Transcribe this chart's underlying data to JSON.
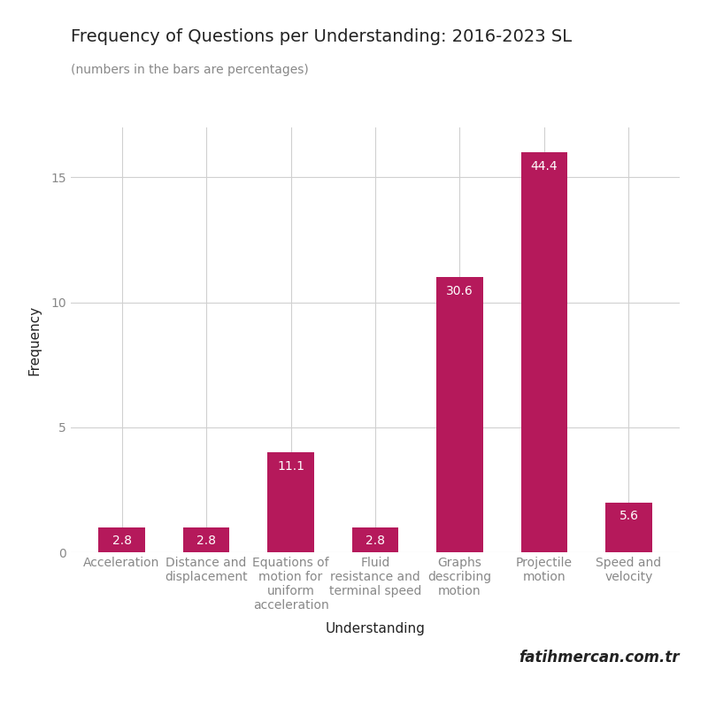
{
  "title": "Frequency of Questions per Understanding: 2016-2023 SL",
  "subtitle": "(numbers in the bars are percentages)",
  "xlabel": "Understanding",
  "ylabel": "Frequency",
  "watermark": "fatihmercan.com.tr",
  "bar_color": "#B5195B",
  "categories": [
    "Acceleration",
    "Distance and\ndisplacement",
    "Equations of\nmotion for\nuniform\nacceleration",
    "Fluid\nresistance and\nterminal speed",
    "Graphs\ndescribing\nmotion",
    "Projectile\nmotion",
    "Speed and\nvelocity"
  ],
  "values": [
    1,
    1,
    4,
    1,
    11,
    16,
    2
  ],
  "percentages": [
    2.8,
    2.8,
    11.1,
    2.8,
    30.6,
    44.4,
    5.6
  ],
  "ylim": [
    0,
    17
  ],
  "yticks": [
    0,
    5,
    10,
    15
  ],
  "background_color": "#ffffff",
  "grid_color": "#d0d0d0",
  "title_fontsize": 14,
  "subtitle_fontsize": 10,
  "axis_label_fontsize": 11,
  "tick_fontsize": 10,
  "bar_label_fontsize": 10,
  "watermark_fontsize": 12,
  "tick_label_color": "#888888",
  "text_color": "#222222"
}
